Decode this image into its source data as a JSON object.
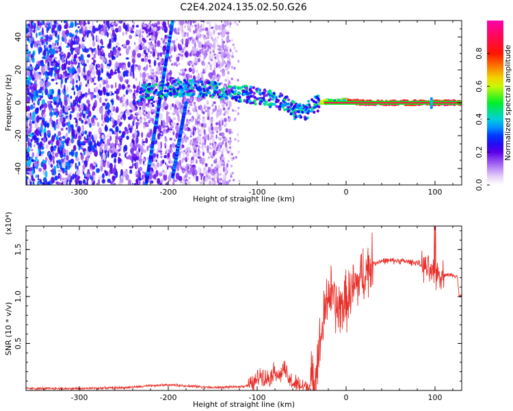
{
  "title": "C2E4.2024.135.02.50.G26",
  "chart_data": [
    {
      "type": "heatmap",
      "xlabel": "Height of straight line (km)",
      "ylabel": "Frequency (Hz)",
      "xlim": [
        -360,
        130
      ],
      "ylim": [
        -50,
        50
      ],
      "xticks": [
        -300,
        -200,
        -100,
        0,
        100
      ],
      "yticks": [
        -40,
        -20,
        0,
        20,
        40
      ],
      "grid": false,
      "colorbar": {
        "label": "Normalized spectral amplitude",
        "range": [
          0,
          1
        ],
        "ticks": [
          "0.0",
          "0.2",
          "0.4",
          "0.6",
          "0.8"
        ]
      },
      "traces": [
        {
          "x": [
            -225,
            -195
          ],
          "y": [
            -50,
            50
          ]
        },
        {
          "x": [
            -195,
            -180
          ],
          "y": [
            -45,
            0
          ]
        }
      ],
      "ridge": {
        "x": [
          -230,
          -210,
          -190,
          -170,
          -150,
          -130,
          -110,
          -90,
          -70,
          -55,
          -45,
          -35,
          -20,
          0,
          20,
          60,
          100,
          130
        ],
        "y": [
          6,
          7,
          9,
          9,
          8,
          6,
          5,
          3,
          0,
          -6,
          -5,
          -1,
          1,
          1,
          0,
          0,
          0,
          0
        ]
      }
    },
    {
      "type": "line",
      "xlabel": "Height of straight line (km)",
      "ylabel": "SNR (10 * v/v)",
      "multiplier": "(x10⁴)",
      "xlim": [
        -360,
        130
      ],
      "ylim": [
        0,
        1.75
      ],
      "xticks": [
        -300,
        -200,
        -100,
        0,
        100
      ],
      "yticks": [
        "0.5",
        "1.0",
        "1.5"
      ],
      "grid": false,
      "color": "#e8302a",
      "x": [
        -360,
        -300,
        -250,
        -200,
        -180,
        -150,
        -120,
        -105,
        -100,
        -95,
        -90,
        -85,
        -80,
        -75,
        -70,
        -65,
        -60,
        -50,
        -40,
        -35,
        -30,
        -25,
        -20,
        -15,
        -10,
        -5,
        0,
        10,
        20,
        30,
        40,
        60,
        80,
        90,
        100,
        105,
        110,
        120,
        125,
        127,
        130
      ],
      "y": [
        0.02,
        0.02,
        0.03,
        0.06,
        0.05,
        0.03,
        0.04,
        0.06,
        0.12,
        0.18,
        0.12,
        0.15,
        0.22,
        0.14,
        0.24,
        0.12,
        0.08,
        0.04,
        0.05,
        0.15,
        0.45,
        0.75,
        1.05,
        1.0,
        0.85,
        0.9,
        0.95,
        1.1,
        1.25,
        1.35,
        1.38,
        1.38,
        1.36,
        1.3,
        1.2,
        1.25,
        1.23,
        1.23,
        1.22,
        1.0,
        1.02
      ]
    }
  ]
}
